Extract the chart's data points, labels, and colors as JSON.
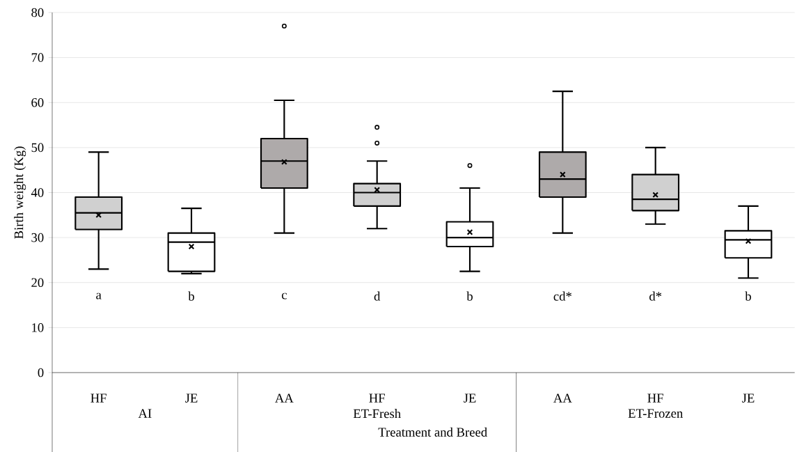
{
  "chart_data": {
    "type": "box",
    "ylabel": "Birth weight (Kg)",
    "xlabel": "Treatment and Breed",
    "categories": [
      "HF",
      "JE",
      "AA",
      "HF",
      "JE",
      "AA",
      "HF",
      "JE"
    ],
    "colors": [
      "#d0d0d0",
      "#ffffff",
      "#aeaaaa",
      "#d0d0d0",
      "#ffffff",
      "#aeaaaa",
      "#d0d0d0",
      "#ffffff"
    ],
    "boxes": [
      {
        "low": 23,
        "q1": 31.8,
        "median": 35.5,
        "q3": 39,
        "high": 49,
        "mean": 35
      },
      {
        "low": 22,
        "q1": 22.5,
        "median": 29,
        "q3": 31,
        "high": 36.5,
        "mean": 28
      },
      {
        "low": 31,
        "q1": 41,
        "median": 47,
        "q3": 52,
        "high": 60.5,
        "mean": 46.8,
        "outliers": [
          77
        ]
      },
      {
        "low": 32,
        "q1": 37,
        "median": 40,
        "q3": 42,
        "high": 47,
        "mean": 40.6,
        "outliers": [
          51,
          54.5
        ]
      },
      {
        "low": 22.5,
        "q1": 28,
        "median": 30,
        "q3": 33.5,
        "high": 41,
        "mean": 31.2,
        "outliers": [
          46
        ]
      },
      {
        "low": 31,
        "q1": 39,
        "median": 43,
        "q3": 49,
        "high": 62.5,
        "mean": 44
      },
      {
        "low": 33,
        "q1": 36,
        "median": 38.5,
        "q3": 44,
        "high": 50,
        "mean": 39.5
      },
      {
        "low": 21,
        "q1": 25.5,
        "median": 29.5,
        "q3": 31.5,
        "high": 37,
        "mean": 29.2
      }
    ],
    "annotations": [
      "a",
      "b",
      "c",
      "d",
      "b",
      "cd*",
      "d*",
      "b",
      "AI",
      "ET-Fresh",
      "ET-Frozen"
    ],
    "ylim": [
      0,
      80
    ],
    "yticks": [
      0,
      10,
      20,
      30,
      40,
      50,
      60,
      70,
      80
    ],
    "grid": "y"
  }
}
